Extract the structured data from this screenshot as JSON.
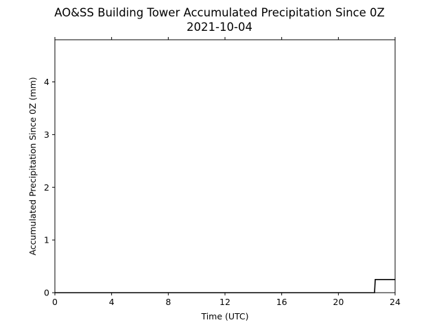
{
  "chart_data": {
    "type": "line",
    "title": "AO&SS Building Tower Accumulated Precipitation Since 0Z",
    "subtitle": "2021-10-04",
    "xlabel": "Time (UTC)",
    "ylabel": "Accumulated Precipitation Since 0Z (mm)",
    "xlim": [
      0,
      24
    ],
    "ylim": [
      0,
      4.8
    ],
    "xticks": [
      0,
      4,
      8,
      12,
      16,
      20,
      24
    ],
    "xtick_labels": [
      "0",
      "4",
      "8",
      "12",
      "16",
      "20",
      "24"
    ],
    "yticks": [
      0,
      1,
      2,
      3,
      4
    ],
    "ytick_labels": [
      "0",
      "1",
      "2",
      "3",
      "4"
    ],
    "grid": false,
    "line_color": "#000000",
    "series": [
      {
        "x": [
          0,
          22.55,
          22.6,
          24
        ],
        "y": [
          0,
          0,
          0.25,
          0.25
        ]
      }
    ]
  }
}
